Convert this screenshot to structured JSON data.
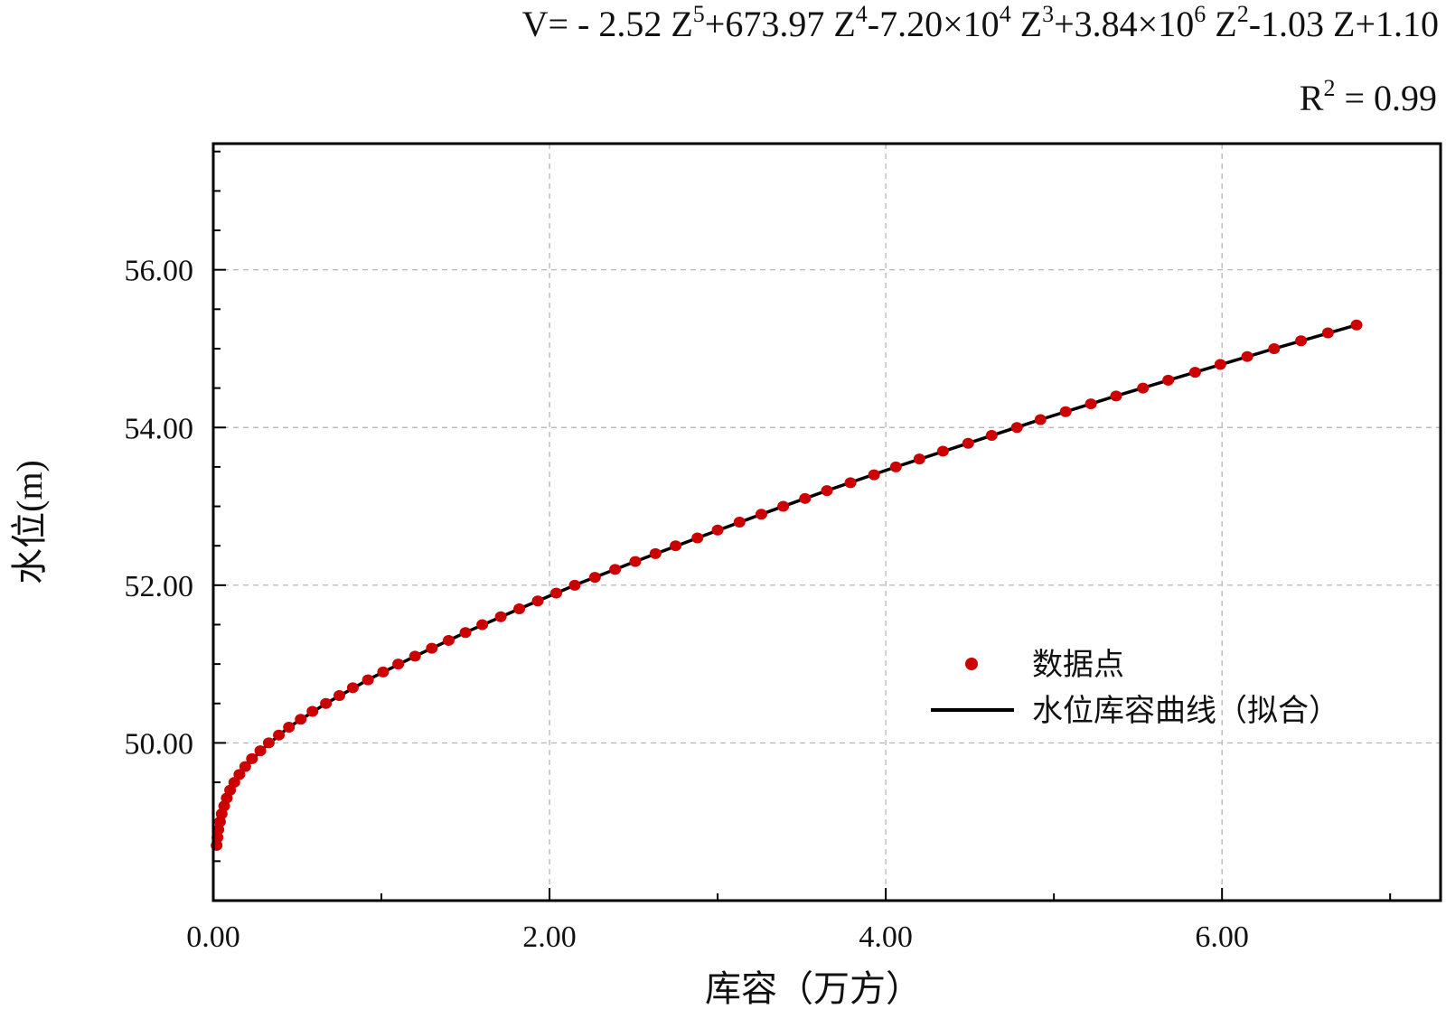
{
  "equation": {
    "prefix": "V= - 2.52 Z",
    "p1": "5",
    "t1": "+673.97 Z",
    "p2": "4",
    "t2": "-7.20×10",
    "p3": "4",
    "t3": " Z",
    "p4": "3",
    "t4": "+3.84×10",
    "p5": "6",
    "t5": " Z",
    "p6": "2",
    "t6": "-1.03 Z+1.10"
  },
  "r2": {
    "prefix": "R",
    "sup": "2",
    "suffix": " = 0.99"
  },
  "chart_data": {
    "type": "scatter",
    "xlabel": "库容（万方）",
    "ylabel": "水位(m)",
    "xlim": [
      0,
      7.3
    ],
    "ylim": [
      48.0,
      57.6
    ],
    "x_ticks": [
      0,
      2,
      4,
      6
    ],
    "x_tick_labels": [
      "0.00",
      "2.00",
      "4.00",
      "6.00"
    ],
    "y_ticks": [
      50,
      52,
      54,
      56
    ],
    "y_tick_labels": [
      "50.00",
      "52.00",
      "54.00",
      "56.00"
    ],
    "grid": true,
    "legend_position": "lower-right",
    "colors": {
      "points": "#cc0000",
      "line": "#000000"
    },
    "series": [
      {
        "name": "数据点",
        "kind": "points",
        "x": [
          0.02,
          0.025,
          0.03,
          0.04,
          0.05,
          0.065,
          0.08,
          0.1,
          0.125,
          0.155,
          0.19,
          0.23,
          0.28,
          0.33,
          0.39,
          0.45,
          0.52,
          0.59,
          0.67,
          0.75,
          0.83,
          0.92,
          1.01,
          1.1,
          1.2,
          1.3,
          1.4,
          1.5,
          1.6,
          1.71,
          1.82,
          1.93,
          2.04,
          2.15,
          2.27,
          2.39,
          2.51,
          2.63,
          2.75,
          2.88,
          3.0,
          3.13,
          3.26,
          3.39,
          3.52,
          3.65,
          3.79,
          3.93,
          4.06,
          4.2,
          4.34,
          4.49,
          4.63,
          4.78,
          4.92,
          5.07,
          5.22,
          5.37,
          5.53,
          5.68,
          5.84,
          5.99,
          6.15,
          6.31,
          6.47,
          6.63,
          6.8
        ],
        "y": [
          48.7,
          48.8,
          48.9,
          49.0,
          49.1,
          49.2,
          49.3,
          49.4,
          49.5,
          49.6,
          49.7,
          49.8,
          49.9,
          50.0,
          50.1,
          50.2,
          50.3,
          50.4,
          50.5,
          50.6,
          50.7,
          50.8,
          50.9,
          51.0,
          51.1,
          51.2,
          51.3,
          51.4,
          51.5,
          51.6,
          51.7,
          51.8,
          51.9,
          52.0,
          52.1,
          52.2,
          52.3,
          52.4,
          52.5,
          52.6,
          52.7,
          52.8,
          52.9,
          53.0,
          53.1,
          53.2,
          53.3,
          53.4,
          53.5,
          53.6,
          53.7,
          53.8,
          53.9,
          54.0,
          54.1,
          54.2,
          54.3,
          54.4,
          54.5,
          54.6,
          54.7,
          54.8,
          54.9,
          55.0,
          55.1,
          55.2,
          55.3
        ]
      },
      {
        "name": "水位库容曲线（拟合）",
        "kind": "line",
        "x": [
          0.02,
          0.04,
          0.08,
          0.155,
          0.28,
          0.45,
          0.67,
          0.92,
          1.2,
          1.5,
          1.82,
          2.15,
          2.51,
          2.88,
          3.26,
          3.65,
          4.06,
          4.49,
          4.92,
          5.37,
          5.84,
          6.31,
          6.8
        ],
        "y": [
          48.7,
          49.0,
          49.3,
          49.6,
          49.9,
          50.2,
          50.5,
          50.8,
          51.1,
          51.4,
          51.7,
          52.0,
          52.3,
          52.6,
          52.9,
          53.2,
          53.5,
          53.8,
          54.1,
          54.4,
          54.7,
          55.0,
          55.3
        ]
      }
    ]
  }
}
